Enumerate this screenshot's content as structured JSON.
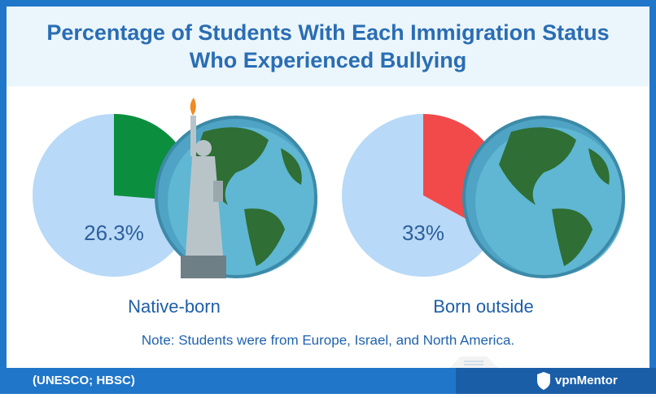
{
  "title": [
    "Percentage of Students With Each Immigration Status",
    "Who Experienced Bullying"
  ],
  "chart_data": [
    {
      "type": "pie",
      "categories": [
        "Native-born"
      ],
      "values": [
        26.3
      ],
      "value_labels": [
        "26.3%"
      ],
      "color": "#0b8f3e"
    },
    {
      "type": "pie",
      "categories": [
        "Born outside"
      ],
      "values": [
        33
      ],
      "value_labels": [
        "33%"
      ],
      "color": "#f24a4a"
    }
  ],
  "note": "Note: Students were from Europe, Israel, and North America.",
  "source": "(UNESCO; HBSC)",
  "brand": "vpnMentor"
}
